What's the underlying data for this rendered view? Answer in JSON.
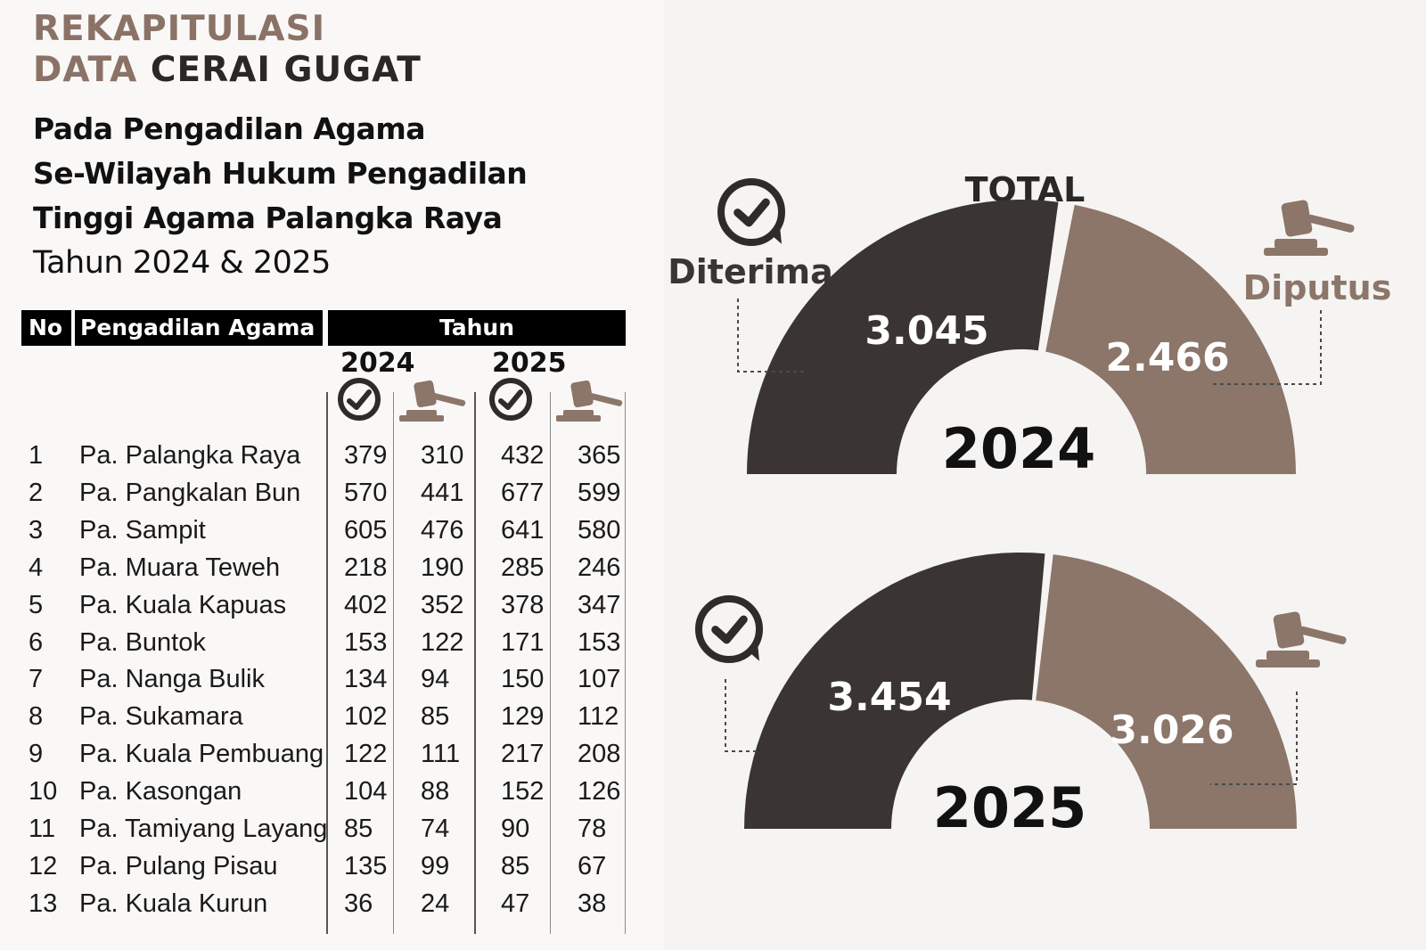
{
  "heading": {
    "line1": "REKAPITULASI",
    "line2_accent": "DATA",
    "line2_dark": "CERAI GUGAT"
  },
  "subtitle": {
    "lines": [
      "Pada Pengadilan Agama",
      "Se-Wilayah Hukum Pengadilan",
      "Tinggi Agama Palangka Raya"
    ],
    "year_line": "Tahun 2024 & 2025"
  },
  "table": {
    "header_no": "No",
    "header_name": "Pengadilan Agama",
    "header_year": "Tahun",
    "year_a": "2024",
    "year_b": "2025",
    "column_icons": [
      "check-icon",
      "gavel-icon",
      "check-icon",
      "gavel-icon"
    ],
    "rows": [
      {
        "no": "1",
        "name": "Pa. Palangka Raya",
        "v": [
          "379",
          "310",
          "432",
          "365"
        ]
      },
      {
        "no": "2",
        "name": "Pa. Pangkalan Bun",
        "v": [
          "570",
          "441",
          "677",
          "599"
        ]
      },
      {
        "no": "3",
        "name": "Pa. Sampit",
        "v": [
          "605",
          "476",
          "641",
          "580"
        ]
      },
      {
        "no": "4",
        "name": "Pa. Muara Teweh",
        "v": [
          "218",
          "190",
          "285",
          "246"
        ]
      },
      {
        "no": "5",
        "name": "Pa. Kuala Kapuas",
        "v": [
          "402",
          "352",
          "378",
          "347"
        ]
      },
      {
        "no": "6",
        "name": "Pa. Buntok",
        "v": [
          "153",
          "122",
          "171",
          "153"
        ]
      },
      {
        "no": "7",
        "name": "Pa. Nanga Bulik",
        "v": [
          "134",
          "94",
          "150",
          "107"
        ]
      },
      {
        "no": "8",
        "name": "Pa. Sukamara",
        "v": [
          "102",
          "85",
          "129",
          "112"
        ]
      },
      {
        "no": "9",
        "name": "Pa. Kuala Pembuang",
        "v": [
          "122",
          "111",
          "217",
          "208"
        ]
      },
      {
        "no": "10",
        "name": "Pa. Kasongan",
        "v": [
          "104",
          "88",
          "152",
          "126"
        ]
      },
      {
        "no": "11",
        "name": "Pa. Tamiyang Layang",
        "v": [
          "85",
          "74",
          "90",
          "78"
        ]
      },
      {
        "no": "12",
        "name": "Pa. Pulang Pisau",
        "v": [
          "135",
          "99",
          "85",
          "67"
        ]
      },
      {
        "no": "13",
        "name": "Pa. Kuala Kurun",
        "v": [
          "36",
          "24",
          "47",
          "38"
        ]
      }
    ]
  },
  "chart_data": [
    {
      "type": "pie",
      "subtype": "semi-donut",
      "title": "TOTAL",
      "center_label": "2024",
      "series": [
        {
          "name": "Diterima",
          "value": 3045,
          "label": "3.045",
          "color": "#3a3532",
          "icon": "check-icon"
        },
        {
          "name": "Diputus",
          "value": 2466,
          "label": "2.466",
          "color": "#8c7569",
          "icon": "gavel-icon"
        }
      ]
    },
    {
      "type": "pie",
      "subtype": "semi-donut",
      "center_label": "2025",
      "series": [
        {
          "value": 3454,
          "label": "3.454",
          "color": "#3a3532",
          "icon": "check-icon"
        },
        {
          "value": 3026,
          "label": "3.026",
          "color": "#8c7569",
          "icon": "gavel-icon"
        }
      ]
    }
  ],
  "colors": {
    "dark": "#3a3532",
    "accent": "#8c7569",
    "heading_accent": "#8a7266"
  }
}
